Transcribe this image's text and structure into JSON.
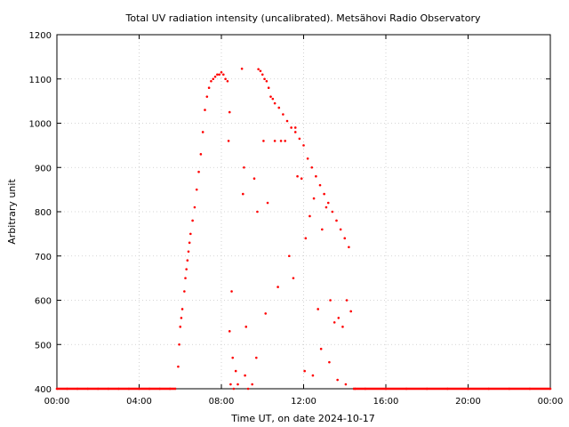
{
  "chart_data": {
    "type": "scatter",
    "title": "Total UV radiation intensity (uncalibrated). Metsähovi Radio Observatory",
    "xlabel": "Time UT, on date 2024-10-17",
    "ylabel": "Arbitrary unit",
    "xlim": [
      0,
      24
    ],
    "ylim": [
      400,
      1200
    ],
    "xticks": [
      0,
      4,
      8,
      12,
      16,
      20,
      24
    ],
    "xtick_labels": [
      "00:00",
      "04:00",
      "08:00",
      "12:00",
      "16:00",
      "20:00",
      "00:00"
    ],
    "yticks": [
      400,
      500,
      600,
      700,
      800,
      900,
      1000,
      1100,
      1200
    ],
    "ytick_labels": [
      "400",
      "500",
      "600",
      "700",
      "800",
      "900",
      "1000",
      "1100",
      "1200"
    ],
    "grid": true,
    "marker_color": "#ff0000",
    "series": [
      {
        "x": [
          0,
          0.5,
          1,
          1.5,
          2,
          2.5,
          3,
          3.5,
          4,
          4.5,
          5,
          5.5,
          5.9,
          5.95,
          6.0,
          6.05,
          6.1,
          6.2,
          6.25,
          6.3,
          6.35,
          6.4,
          6.45,
          6.5,
          6.6,
          6.7,
          6.8,
          6.9,
          7.0,
          7.1,
          7.2,
          7.3,
          7.4,
          7.5,
          7.6,
          7.7,
          7.8,
          7.9,
          8.0,
          8.1,
          8.2,
          8.3,
          8.35,
          8.4,
          8.5,
          8.55,
          8.6,
          9.0,
          9.1,
          9.3,
          9.5,
          9.8,
          9.9,
          10.0,
          10.1,
          10.2,
          10.3,
          10.4,
          10.5,
          10.6,
          10.8,
          11.0,
          11.2,
          11.4,
          11.6,
          11.8,
          12.0,
          12.2,
          12.4,
          12.6,
          12.8,
          13.0,
          13.2,
          13.4,
          13.6,
          13.8,
          14.0,
          14.2,
          8.45,
          8.7,
          9.05,
          9.15,
          9.6,
          9.75,
          10.05,
          10.25,
          10.6,
          10.9,
          11.3,
          11.5,
          11.7,
          11.9,
          12.1,
          12.3,
          12.5,
          12.7,
          12.9,
          13.1,
          13.3,
          13.5,
          13.7,
          13.9,
          14.1,
          14.3,
          8.4,
          8.8,
          9.2,
          9.7,
          10.15,
          10.75,
          11.1,
          11.6,
          12.05,
          12.45,
          12.85,
          13.25,
          13.65,
          14.05,
          14.5,
          15,
          16,
          17,
          18,
          19,
          20,
          21,
          22,
          23,
          24
        ],
        "y": [
          400,
          400,
          400,
          400,
          400,
          400,
          400,
          400,
          400,
          400,
          400,
          400,
          450,
          500,
          540,
          560,
          580,
          620,
          650,
          670,
          690,
          710,
          730,
          750,
          780,
          810,
          850,
          890,
          930,
          980,
          1030,
          1060,
          1080,
          1095,
          1100,
          1105,
          1110,
          1110,
          1115,
          1110,
          1100,
          1095,
          960,
          1025,
          620,
          470,
          400,
          1123,
          900,
          400,
          410,
          1122,
          1118,
          1110,
          1100,
          1095,
          1080,
          1060,
          1055,
          1045,
          1035,
          1020,
          1005,
          990,
          980,
          965,
          950,
          920,
          900,
          880,
          860,
          840,
          820,
          800,
          780,
          760,
          740,
          720,
          410,
          440,
          840,
          430,
          875,
          800,
          960,
          820,
          960,
          960,
          700,
          650,
          880,
          875,
          740,
          790,
          830,
          580,
          760,
          810,
          600,
          550,
          560,
          540,
          600,
          575,
          530,
          410,
          540,
          470,
          570,
          630,
          960,
          990,
          440,
          430,
          490,
          460,
          420,
          410,
          400,
          400,
          400,
          400,
          400,
          400,
          400,
          400,
          400,
          400,
          400
        ]
      }
    ]
  }
}
